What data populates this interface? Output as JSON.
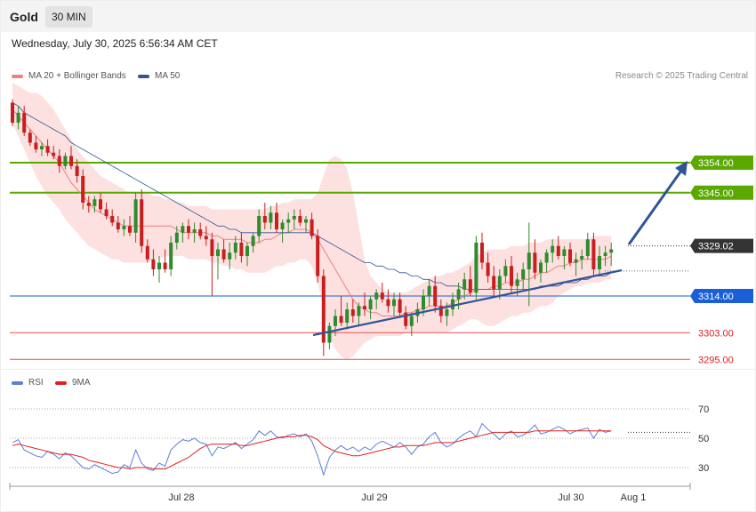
{
  "header": {
    "title": "Gold",
    "timeframe": "30 MIN"
  },
  "datetime": "Wednesday, July 30, 2025 6:56:34 AM CET",
  "credit": "Research © 2025 Trading Central",
  "legend_main": [
    {
      "label": "MA 20 + Bollinger Bands",
      "color": "#f08080"
    },
    {
      "label": "MA 50",
      "color": "#2f5597"
    }
  ],
  "legend_rsi": [
    {
      "label": "RSI",
      "color": "#5b7fd6"
    },
    {
      "label": "9MA",
      "color": "#e02020"
    }
  ],
  "colors": {
    "support_green": "#5aa800",
    "pivot_blue": "#1a5fd6",
    "resistance_red": "#e85050",
    "up": "#2e8b2e",
    "down": "#c81e1e",
    "arrow": "#2f5597"
  },
  "chart_data": [
    {
      "type": "candlestick",
      "title": "Gold",
      "timeframe": "30 MIN",
      "ylim": [
        3290,
        3390
      ],
      "x_tick_labels": [
        "Jul 28",
        "Jul 29",
        "Jul 30",
        "Aug 1"
      ],
      "levels": [
        {
          "label": "3354.00",
          "value": 3354,
          "style": "green"
        },
        {
          "label": "3345.00",
          "value": 3345,
          "style": "green"
        },
        {
          "label": "3329.02",
          "value": 3329.02,
          "style": "current"
        },
        {
          "label": "3314.00",
          "value": 3314,
          "style": "blue"
        },
        {
          "label": "3303.00",
          "value": 3303,
          "style": "red"
        },
        {
          "label": "3295.00",
          "value": 3295,
          "style": "red"
        }
      ],
      "ohlc": [
        [
          3372,
          3373,
          3365,
          3366
        ],
        [
          3366,
          3371,
          3364,
          3369
        ],
        [
          3369,
          3371,
          3362,
          3363
        ],
        [
          3363,
          3364,
          3359,
          3360
        ],
        [
          3360,
          3362,
          3357,
          3358
        ],
        [
          3358,
          3360,
          3356,
          3359
        ],
        [
          3359,
          3361,
          3356,
          3357
        ],
        [
          3357,
          3359,
          3355,
          3356
        ],
        [
          3356,
          3358,
          3351,
          3353
        ],
        [
          3353,
          3357,
          3352,
          3356
        ],
        [
          3356,
          3359,
          3352,
          3353
        ],
        [
          3353,
          3355,
          3348,
          3350
        ],
        [
          3350,
          3352,
          3340,
          3342
        ],
        [
          3342,
          3344,
          3339,
          3341
        ],
        [
          3341,
          3344,
          3339,
          3343
        ],
        [
          3343,
          3345,
          3339,
          3340
        ],
        [
          3340,
          3342,
          3337,
          3338
        ],
        [
          3338,
          3340,
          3335,
          3336
        ],
        [
          3336,
          3338,
          3333,
          3334
        ],
        [
          3334,
          3337,
          3332,
          3335
        ],
        [
          3335,
          3338,
          3332,
          3333
        ],
        [
          3333,
          3345,
          3330,
          3343
        ],
        [
          3343,
          3346,
          3327,
          3329
        ],
        [
          3329,
          3331,
          3324,
          3325
        ],
        [
          3325,
          3328,
          3320,
          3322
        ],
        [
          3322,
          3326,
          3318,
          3324
        ],
        [
          3324,
          3328,
          3321,
          3322
        ],
        [
          3322,
          3332,
          3320,
          3330
        ],
        [
          3330,
          3335,
          3328,
          3333
        ],
        [
          3333,
          3336,
          3330,
          3335
        ],
        [
          3335,
          3337,
          3331,
          3333
        ],
        [
          3333,
          3336,
          3330,
          3334
        ],
        [
          3334,
          3336,
          3331,
          3332
        ],
        [
          3332,
          3335,
          3329,
          3331
        ],
        [
          3331,
          3333,
          3314,
          3326
        ],
        [
          3326,
          3330,
          3319,
          3328
        ],
        [
          3328,
          3331,
          3324,
          3325
        ],
        [
          3325,
          3330,
          3322,
          3327
        ],
        [
          3327,
          3332,
          3325,
          3330
        ],
        [
          3330,
          3333,
          3324,
          3326
        ],
        [
          3326,
          3330,
          3323,
          3329
        ],
        [
          3329,
          3333,
          3327,
          3332
        ],
        [
          3332,
          3340,
          3330,
          3338
        ],
        [
          3338,
          3342,
          3334,
          3336
        ],
        [
          3336,
          3341,
          3334,
          3339
        ],
        [
          3339,
          3342,
          3333,
          3334
        ],
        [
          3334,
          3337,
          3330,
          3336
        ],
        [
          3336,
          3339,
          3333,
          3337
        ],
        [
          3337,
          3340,
          3334,
          3338
        ],
        [
          3338,
          3340,
          3335,
          3336
        ],
        [
          3336,
          3338,
          3333,
          3337
        ],
        [
          3337,
          3339,
          3331,
          3332
        ],
        [
          3332,
          3334,
          3318,
          3320
        ],
        [
          3320,
          3322,
          3296,
          3300
        ],
        [
          3300,
          3306,
          3298,
          3305
        ],
        [
          3305,
          3310,
          3302,
          3308
        ],
        [
          3308,
          3314,
          3305,
          3306
        ],
        [
          3306,
          3312,
          3304,
          3310
        ],
        [
          3310,
          3313,
          3306,
          3308
        ],
        [
          3308,
          3312,
          3305,
          3311
        ],
        [
          3311,
          3315,
          3308,
          3310
        ],
        [
          3310,
          3314,
          3307,
          3313
        ],
        [
          3313,
          3316,
          3310,
          3315
        ],
        [
          3315,
          3318,
          3312,
          3313
        ],
        [
          3313,
          3316,
          3309,
          3311
        ],
        [
          3311,
          3315,
          3308,
          3313
        ],
        [
          3313,
          3315,
          3308,
          3309
        ],
        [
          3309,
          3311,
          3304,
          3305
        ],
        [
          3305,
          3309,
          3302,
          3308
        ],
        [
          3308,
          3312,
          3306,
          3310
        ],
        [
          3310,
          3316,
          3308,
          3314
        ],
        [
          3314,
          3319,
          3311,
          3317
        ],
        [
          3317,
          3320,
          3309,
          3311
        ],
        [
          3311,
          3313,
          3306,
          3308
        ],
        [
          3308,
          3312,
          3305,
          3310
        ],
        [
          3310,
          3315,
          3308,
          3313
        ],
        [
          3313,
          3318,
          3310,
          3316
        ],
        [
          3316,
          3321,
          3313,
          3319
        ],
        [
          3319,
          3323,
          3314,
          3315
        ],
        [
          3315,
          3332,
          3313,
          3330
        ],
        [
          3330,
          3333,
          3322,
          3324
        ],
        [
          3324,
          3327,
          3318,
          3320
        ],
        [
          3320,
          3323,
          3314,
          3316
        ],
        [
          3316,
          3322,
          3313,
          3320
        ],
        [
          3320,
          3325,
          3318,
          3323
        ],
        [
          3323,
          3326,
          3315,
          3317
        ],
        [
          3317,
          3321,
          3314,
          3319
        ],
        [
          3319,
          3324,
          3316,
          3322
        ],
        [
          3322,
          3336,
          3311,
          3327
        ],
        [
          3327,
          3331,
          3319,
          3321
        ],
        [
          3321,
          3325,
          3318,
          3324
        ],
        [
          3324,
          3328,
          3321,
          3327
        ],
        [
          3327,
          3331,
          3324,
          3329
        ],
        [
          3329,
          3332,
          3325,
          3326
        ],
        [
          3326,
          3329,
          3322,
          3328
        ],
        [
          3328,
          3330,
          3323,
          3324
        ],
        [
          3324,
          3327,
          3320,
          3325
        ],
        [
          3325,
          3328,
          3322,
          3326
        ],
        [
          3326,
          3333,
          3325,
          3331
        ],
        [
          3331,
          3333,
          3320,
          3322
        ],
        [
          3322,
          3329,
          3320,
          3326
        ],
        [
          3326,
          3329,
          3323,
          3327
        ],
        [
          3327,
          3330,
          3323,
          3328
        ]
      ],
      "ma20": [
        3370,
        3368,
        3366,
        3364,
        3362,
        3360,
        3358,
        3356,
        3354,
        3351,
        3348,
        3346,
        3344,
        3342,
        3340,
        3339,
        3338,
        3337,
        3336,
        3335,
        3335,
        3335,
        3335,
        3335,
        3335,
        3335,
        3335,
        3335,
        3334,
        3333,
        3333,
        3333,
        3333,
        3333,
        3332,
        3332,
        3331,
        3331,
        3331,
        3331,
        3330,
        3330,
        3330,
        3331,
        3331,
        3332,
        3333,
        3333,
        3334,
        3334,
        3334,
        3333,
        3331,
        3328,
        3325,
        3322,
        3319,
        3316,
        3313,
        3311,
        3310,
        3309,
        3309,
        3308,
        3308,
        3308,
        3308,
        3309,
        3309,
        3310,
        3310,
        3311,
        3311,
        3311,
        3311,
        3312,
        3313,
        3314,
        3315,
        3316,
        3316,
        3316,
        3317,
        3317,
        3318,
        3318,
        3318,
        3319,
        3319,
        3320,
        3321,
        3321,
        3322,
        3323,
        3323,
        3324,
        3324,
        3325,
        3325,
        3325,
        3325,
        3325,
        3326
      ],
      "bb_upper": [
        3378,
        3377,
        3376,
        3375,
        3375,
        3374,
        3372,
        3370,
        3367,
        3364,
        3361,
        3358,
        3356,
        3354,
        3352,
        3350,
        3349,
        3348,
        3347,
        3346,
        3345,
        3345,
        3345,
        3345,
        3344,
        3344,
        3343,
        3343,
        3342,
        3342,
        3341,
        3341,
        3341,
        3341,
        3340,
        3340,
        3340,
        3340,
        3340,
        3340,
        3340,
        3340,
        3340,
        3340,
        3341,
        3341,
        3342,
        3342,
        3343,
        3343,
        3343,
        3343,
        3345,
        3350,
        3355,
        3356,
        3355,
        3352,
        3345,
        3335,
        3325,
        3320,
        3318,
        3316,
        3315,
        3315,
        3315,
        3315,
        3316,
        3317,
        3318,
        3319,
        3320,
        3320,
        3321,
        3321,
        3322,
        3323,
        3324,
        3326,
        3327,
        3328,
        3328,
        3328,
        3328,
        3329,
        3329,
        3329,
        3330,
        3330,
        3330,
        3331,
        3331,
        3331,
        3331,
        3331,
        3331,
        3331,
        3331,
        3332,
        3332,
        3332,
        3332
      ],
      "bb_lower": [
        3366,
        3362,
        3358,
        3354,
        3350,
        3347,
        3344,
        3342,
        3340,
        3337,
        3335,
        3333,
        3331,
        3329,
        3328,
        3327,
        3326,
        3325,
        3325,
        3324,
        3324,
        3324,
        3324,
        3324,
        3325,
        3325,
        3326,
        3326,
        3326,
        3326,
        3325,
        3325,
        3325,
        3325,
        3324,
        3324,
        3323,
        3323,
        3322,
        3322,
        3321,
        3321,
        3321,
        3321,
        3322,
        3323,
        3323,
        3324,
        3324,
        3325,
        3325,
        3323,
        3318,
        3310,
        3302,
        3298,
        3296,
        3295,
        3296,
        3298,
        3300,
        3301,
        3302,
        3302,
        3302,
        3302,
        3302,
        3303,
        3303,
        3303,
        3303,
        3303,
        3303,
        3303,
        3303,
        3304,
        3305,
        3306,
        3307,
        3307,
        3306,
        3305,
        3305,
        3306,
        3307,
        3308,
        3308,
        3309,
        3309,
        3310,
        3311,
        3311,
        3312,
        3314,
        3315,
        3316,
        3317,
        3317,
        3318,
        3318,
        3318,
        3319,
        3319
      ],
      "ma50": [
        3372,
        3371,
        3369,
        3368,
        3367,
        3366,
        3365,
        3364,
        3363,
        3362,
        3360,
        3359,
        3358,
        3357,
        3356,
        3355,
        3354,
        3353,
        3352,
        3351,
        3350,
        3349,
        3348,
        3347,
        3346,
        3345,
        3344,
        3343,
        3342,
        3341,
        3340,
        3339,
        3338,
        3337,
        3336,
        3335,
        3335,
        3334,
        3334,
        3333,
        3333,
        3333,
        3333,
        3333,
        3333,
        3333,
        3333,
        3333,
        3333,
        3333,
        3333,
        3333,
        3332,
        3331,
        3330,
        3329,
        3328,
        3327,
        3326,
        3325,
        3324,
        3324,
        3323,
        3323,
        3322,
        3322,
        3321,
        3321,
        3320,
        3320,
        3319,
        3319,
        3318,
        3318,
        3317,
        3317,
        3317,
        3316,
        3316,
        3316,
        3316,
        3316,
        3316,
        3316,
        3316,
        3316,
        3316,
        3316,
        3316,
        3316,
        3317,
        3317,
        3317,
        3317,
        3318,
        3318,
        3318,
        3319,
        3319,
        3320,
        3320,
        3320,
        3321
      ]
    },
    {
      "type": "line",
      "title": "RSI",
      "ylim": [
        20,
        80
      ],
      "y_tick_labels": [
        "70",
        "50",
        "30"
      ],
      "levels": [
        70,
        50,
        30
      ],
      "series": [
        {
          "name": "RSI",
          "values": [
            47,
            49,
            42,
            40,
            38,
            37,
            41,
            39,
            36,
            40,
            38,
            34,
            30,
            29,
            32,
            30,
            28,
            26,
            27,
            32,
            30,
            42,
            33,
            29,
            28,
            33,
            31,
            42,
            46,
            49,
            48,
            50,
            47,
            46,
            38,
            44,
            43,
            45,
            47,
            43,
            46,
            49,
            55,
            52,
            55,
            51,
            50,
            52,
            53,
            51,
            53,
            48,
            38,
            25,
            37,
            42,
            45,
            42,
            44,
            41,
            44,
            42,
            46,
            48,
            46,
            44,
            47,
            44,
            39,
            44,
            46,
            51,
            54,
            47,
            44,
            46,
            50,
            53,
            55,
            51,
            60,
            56,
            53,
            49,
            53,
            55,
            51,
            52,
            55,
            59,
            53,
            54,
            56,
            58,
            56,
            53,
            55,
            56,
            57,
            50,
            56,
            54,
            55
          ]
        },
        {
          "name": "9MA",
          "values": [
            45,
            46,
            45,
            44,
            43,
            42,
            41,
            40,
            39,
            39,
            39,
            38,
            37,
            35,
            34,
            33,
            32,
            31,
            30,
            30,
            29,
            30,
            30,
            30,
            29,
            29,
            29,
            31,
            33,
            35,
            37,
            40,
            43,
            45,
            46,
            46,
            46,
            46,
            46,
            45,
            45,
            46,
            47,
            48,
            49,
            50,
            51,
            51,
            51,
            52,
            52,
            51,
            49,
            45,
            43,
            41,
            40,
            39,
            38,
            38,
            39,
            40,
            41,
            42,
            43,
            44,
            44,
            45,
            45,
            45,
            45,
            46,
            47,
            47,
            47,
            47,
            48,
            49,
            50,
            51,
            52,
            53,
            54,
            54,
            54,
            54,
            54,
            54,
            54,
            55,
            55,
            55,
            55,
            55,
            55,
            55,
            55,
            55,
            55,
            55,
            55,
            55,
            55
          ]
        }
      ]
    }
  ]
}
